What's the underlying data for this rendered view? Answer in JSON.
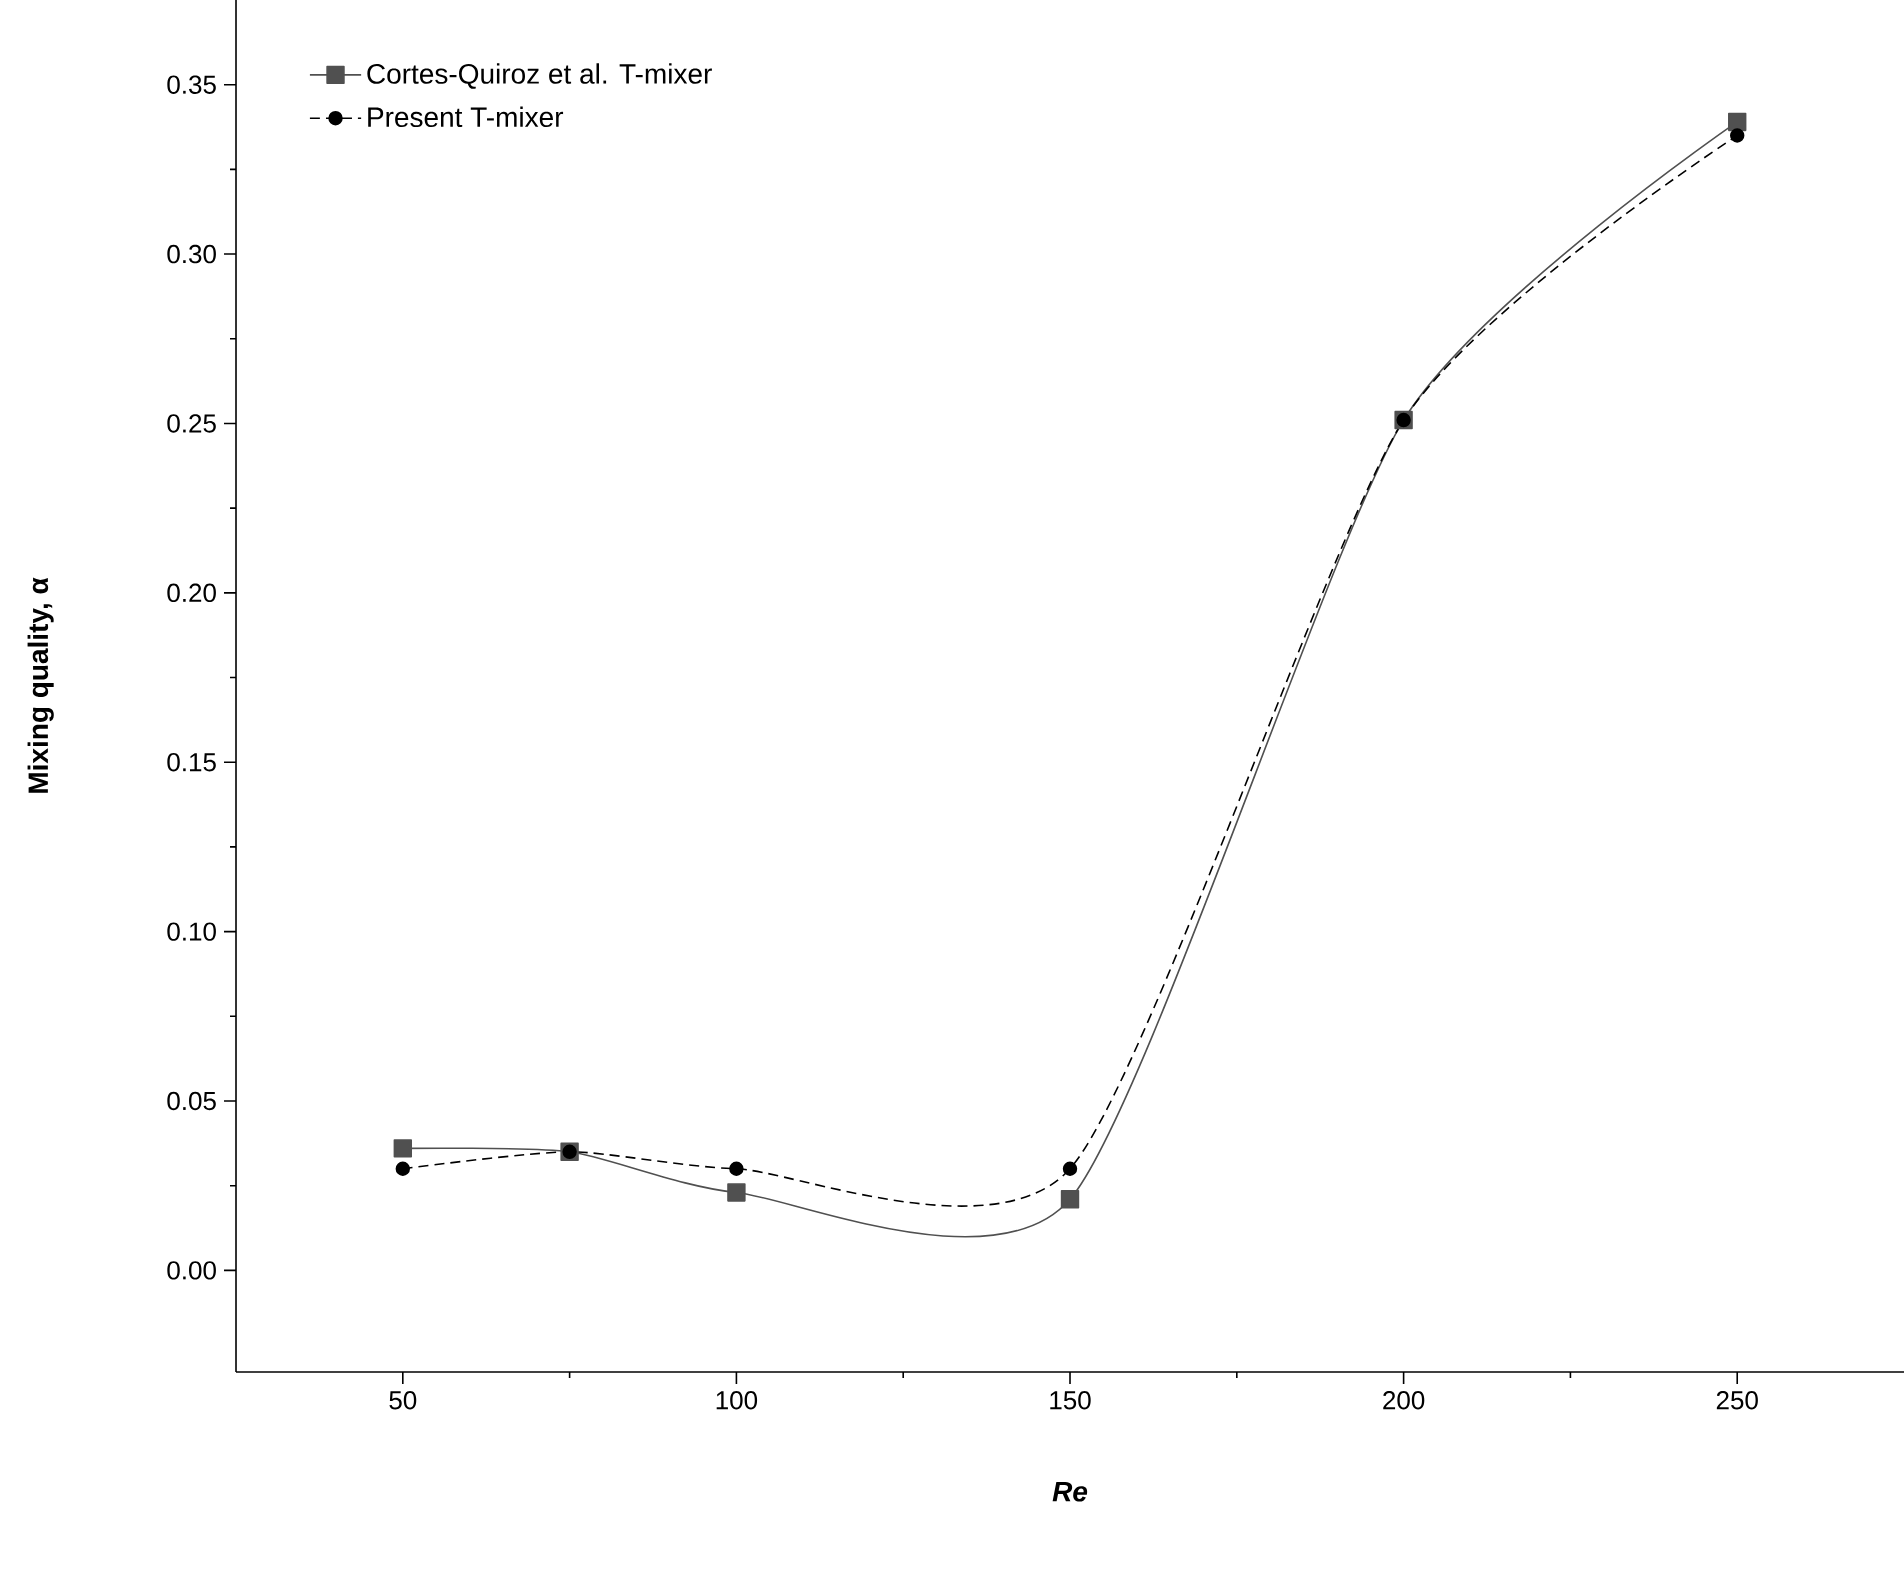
{
  "chart_data": {
    "type": "line",
    "xlabel": "*Re*",
    "ylabel": "Mixing quality, α",
    "x": [
      50,
      75,
      100,
      150,
      200,
      250
    ],
    "series": [
      {
        "name": "Cortes-Quiroz et al. T-mixer",
        "color": "#505050",
        "marker": "square",
        "line_style": "solid",
        "values": [
          0.036,
          0.035,
          0.023,
          0.021,
          0.251,
          0.339
        ]
      },
      {
        "name": "Present T-mixer",
        "color": "#000000",
        "marker": "circle",
        "line_style": "dashed",
        "values": [
          0.03,
          0.035,
          0.03,
          0.03,
          0.251,
          0.335
        ]
      }
    ],
    "xlim": [
      25,
      275
    ],
    "ylim": [
      -0.03,
      0.375
    ],
    "xticks": [
      50,
      100,
      150,
      200,
      250
    ],
    "yticks": [
      {
        "value": 0.0,
        "label": "0.00"
      },
      {
        "value": 0.05,
        "label": "0.05"
      },
      {
        "value": 0.1,
        "label": "0.10"
      },
      {
        "value": 0.15,
        "label": "0.15"
      },
      {
        "value": 0.2,
        "label": "0.20"
      },
      {
        "value": 0.25,
        "label": "0.25"
      },
      {
        "value": 0.3,
        "label": "0.30"
      },
      {
        "value": 0.35,
        "label": "0.35"
      }
    ],
    "legend": "top left",
    "grid": false
  }
}
